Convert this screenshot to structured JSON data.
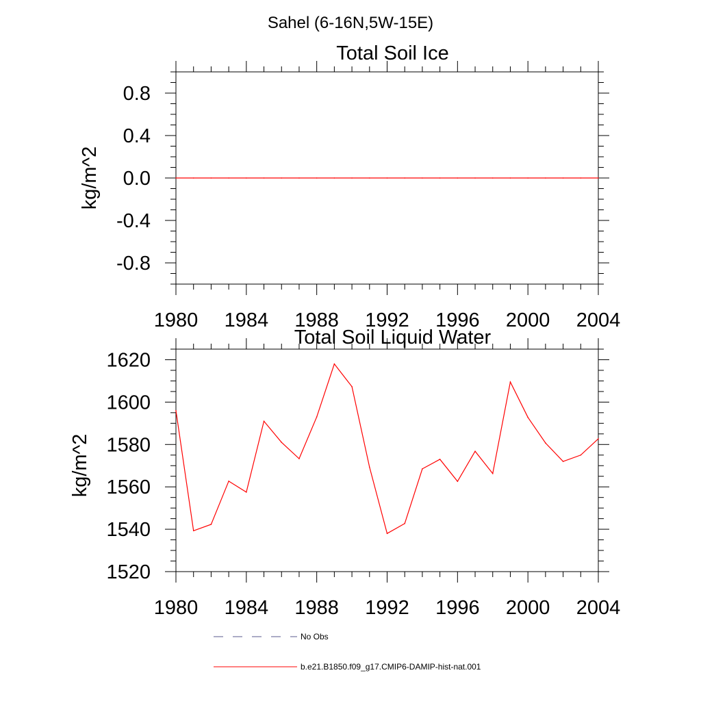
{
  "figure": {
    "suptitle": "Sahel (6-16N,5W-15E)"
  },
  "chart_data": [
    {
      "type": "line",
      "title": "Total Soil Ice",
      "xlabel": "",
      "ylabel": "kg/m^2",
      "xlim": [
        1980,
        2004
      ],
      "ylim": [
        -1.0,
        1.0
      ],
      "xticks": [
        "1980",
        "1984",
        "1988",
        "1992",
        "1996",
        "2000",
        "2004"
      ],
      "yticks": [
        "-0.8",
        "-0.4",
        "0.0",
        "0.4",
        "0.8"
      ],
      "yticks_values": [
        -0.8,
        -0.4,
        0.0,
        0.4,
        0.8
      ],
      "grid": false,
      "series": [
        {
          "name": "b.e21.B1850.f09_g17.CMIP6-DAMIP-hist-nat.001",
          "color": "#ff0000",
          "x": [
            1980,
            1981,
            1982,
            1983,
            1984,
            1985,
            1986,
            1987,
            1988,
            1989,
            1990,
            1991,
            1992,
            1993,
            1994,
            1995,
            1996,
            1997,
            1998,
            1999,
            2000,
            2001,
            2002,
            2003,
            2004
          ],
          "y": [
            0,
            0,
            0,
            0,
            0,
            0,
            0,
            0,
            0,
            0,
            0,
            0,
            0,
            0,
            0,
            0,
            0,
            0,
            0,
            0,
            0,
            0,
            0,
            0,
            0
          ]
        }
      ]
    },
    {
      "type": "line",
      "title": "Total Soil Liquid Water",
      "xlabel": "",
      "ylabel": "kg/m^2",
      "xlim": [
        1980,
        2004
      ],
      "ylim": [
        1520,
        1625
      ],
      "xticks": [
        "1980",
        "1984",
        "1988",
        "1992",
        "1996",
        "2000",
        "2004"
      ],
      "yticks": [
        "1520",
        "1540",
        "1560",
        "1580",
        "1600",
        "1620"
      ],
      "yticks_values": [
        1520,
        1540,
        1560,
        1580,
        1600,
        1620
      ],
      "grid": false,
      "series": [
        {
          "name": "b.e21.B1850.f09_g17.CMIP6-DAMIP-hist-nat.001",
          "color": "#ff0000",
          "x": [
            1980,
            1981,
            1982,
            1983,
            1984,
            1985,
            1986,
            1987,
            1988,
            1989,
            1990,
            1991,
            1992,
            1993,
            1994,
            1995,
            1996,
            1997,
            1998,
            1999,
            2000,
            2001,
            2002,
            2003,
            2004
          ],
          "y": [
            1596,
            1539.3,
            1542.3,
            1562.7,
            1557.5,
            1591,
            1581,
            1573.3,
            1593,
            1618,
            1607.3,
            1569.3,
            1538,
            1542.7,
            1568.5,
            1573,
            1562.6,
            1576.8,
            1566.3,
            1609.5,
            1592.8,
            1580.7,
            1572,
            1575,
            1582.7
          ]
        }
      ]
    }
  ],
  "legend": {
    "items": [
      {
        "label": "No Obs",
        "style": "dashed",
        "color": "#5a5a8c"
      },
      {
        "label": "b.e21.B1850.f09_g17.CMIP6-DAMIP-hist-nat.001",
        "style": "solid",
        "color": "#ff0000"
      }
    ]
  }
}
